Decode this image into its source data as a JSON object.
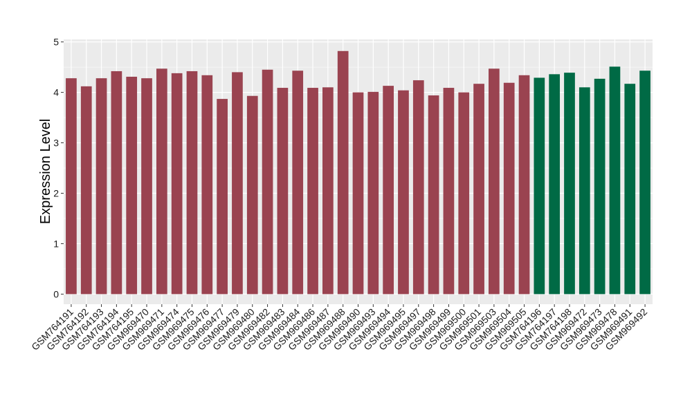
{
  "chart_data": {
    "type": "bar",
    "ylabel": "Expression Level",
    "xlabel": "",
    "ylim": [
      -0.2,
      5.05
    ],
    "yticks": [
      0,
      1,
      2,
      3,
      4,
      5
    ],
    "grid": true,
    "background": "#EBEBEB",
    "colors": {
      "group1": "#9A4350",
      "group2": "#006A45",
      "grid": "#FFFFFF"
    },
    "categories": [
      "GSM764191",
      "GSM764192",
      "GSM764193",
      "GSM764194",
      "GSM764195",
      "GSM969470",
      "GSM969471",
      "GSM969474",
      "GSM969475",
      "GSM969476",
      "GSM969477",
      "GSM969479",
      "GSM969480",
      "GSM969482",
      "GSM969483",
      "GSM969484",
      "GSM969486",
      "GSM969487",
      "GSM969488",
      "GSM969490",
      "GSM969493",
      "GSM969494",
      "GSM969495",
      "GSM969497",
      "GSM969498",
      "GSM969499",
      "GSM969500",
      "GSM969501",
      "GSM969503",
      "GSM969504",
      "GSM969505",
      "GSM764196",
      "GSM764197",
      "GSM764198",
      "GSM969472",
      "GSM969473",
      "GSM969478",
      "GSM969491",
      "GSM969492"
    ],
    "values": [
      4.28,
      4.12,
      4.28,
      4.42,
      4.31,
      4.28,
      4.47,
      4.38,
      4.42,
      4.34,
      3.87,
      4.4,
      3.93,
      4.45,
      4.09,
      4.43,
      4.09,
      4.1,
      4.82,
      4.0,
      4.01,
      4.13,
      4.04,
      4.24,
      3.94,
      4.09,
      4.0,
      4.17,
      4.47,
      4.19,
      4.34,
      4.29,
      4.36,
      4.39,
      4.1,
      4.27,
      4.51,
      4.17,
      4.43
    ],
    "groups": [
      "group1",
      "group1",
      "group1",
      "group1",
      "group1",
      "group1",
      "group1",
      "group1",
      "group1",
      "group1",
      "group1",
      "group1",
      "group1",
      "group1",
      "group1",
      "group1",
      "group1",
      "group1",
      "group1",
      "group1",
      "group1",
      "group1",
      "group1",
      "group1",
      "group1",
      "group1",
      "group1",
      "group1",
      "group1",
      "group1",
      "group1",
      "group2",
      "group2",
      "group2",
      "group2",
      "group2",
      "group2",
      "group2",
      "group2"
    ]
  }
}
